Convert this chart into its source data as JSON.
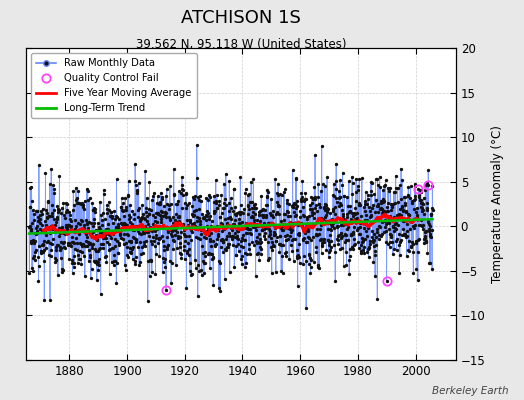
{
  "title": "ATCHISON 1S",
  "subtitle": "39.562 N, 95.118 W (United States)",
  "ylabel": "Temperature Anomaly (°C)",
  "watermark": "Berkeley Earth",
  "xlim": [
    1865,
    2014
  ],
  "ylim": [
    -15,
    20
  ],
  "yticks": [
    -15,
    -10,
    -5,
    0,
    5,
    10,
    15,
    20
  ],
  "xticks": [
    1880,
    1900,
    1920,
    1940,
    1960,
    1980,
    2000
  ],
  "bg_color": "#e8e8e8",
  "plot_bg_color": "#ffffff",
  "raw_line_color": "#6688ff",
  "raw_dot_color": "#111111",
  "moving_avg_color": "#ff0000",
  "trend_color": "#00bb00",
  "qc_fail_color": "#ff44ff",
  "seed": 17,
  "n_months": 1680,
  "start_year": 1866.0,
  "end_year": 2005.9
}
